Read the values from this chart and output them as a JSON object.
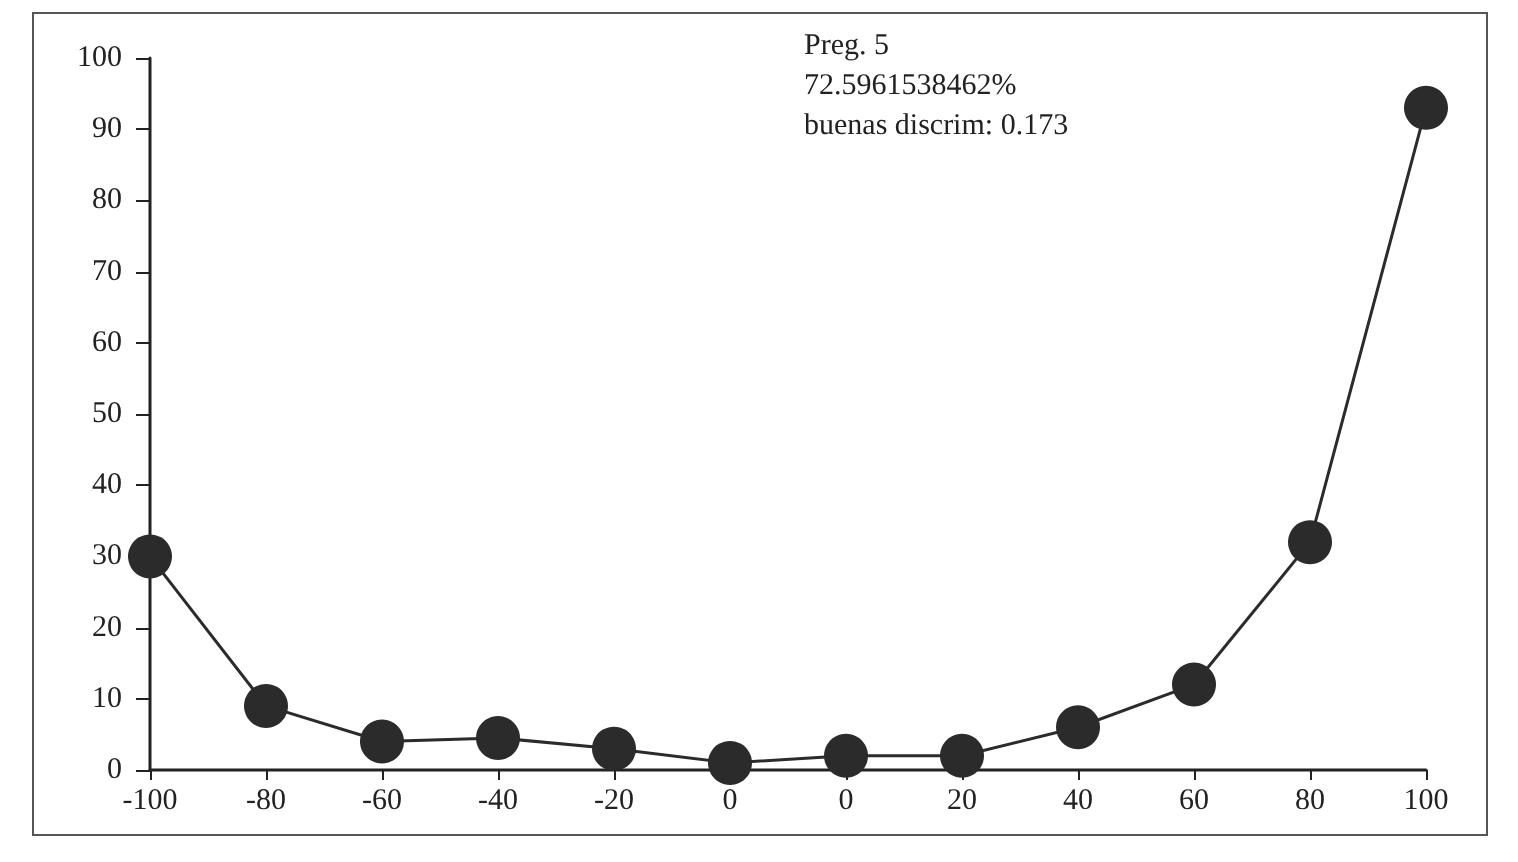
{
  "chart_data": {
    "type": "line",
    "categories": [
      "-100",
      "-80",
      "-60",
      "-40",
      "-20",
      "0",
      "0",
      "20",
      "40",
      "60",
      "80",
      "100"
    ],
    "series": [
      {
        "color": "#2b2b2b",
        "values": [
          30,
          9,
          4,
          4.5,
          3,
          1,
          2,
          2,
          6,
          12,
          32,
          93
        ]
      }
    ],
    "ylim": [
      0,
      100
    ],
    "yticks": [
      0,
      10,
      20,
      30,
      40,
      50,
      60,
      70,
      80,
      90,
      100
    ],
    "grid": false,
    "marker": "circle",
    "line_style": "solid",
    "annotations": [
      "Preg. 5",
      "72.5961538462%",
      "buenas discrim: 0.173"
    ]
  }
}
